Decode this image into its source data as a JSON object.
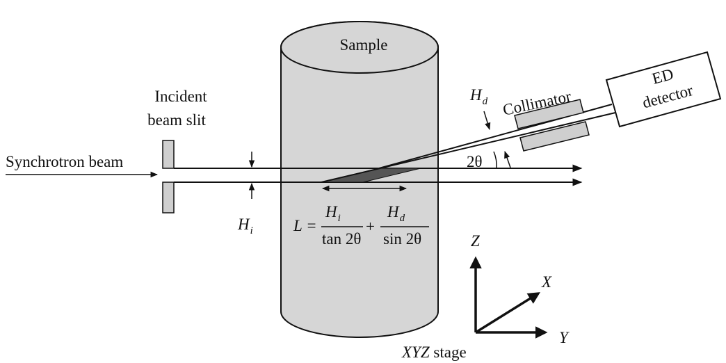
{
  "labels": {
    "sample": "Sample",
    "incident_line1": "Incident",
    "incident_line2": "beam slit",
    "synchrotron_beam": "Synchrotron beam",
    "collimator": "Collimator",
    "detector_line1": "ED",
    "detector_line2": "detector",
    "two_theta": "2θ",
    "stage_axes": "XYZ",
    "stage_word": " stage"
  },
  "symbols": {
    "H": "H",
    "sub_i": "i",
    "sub_d": "d"
  },
  "formula": {
    "lhs": "L =",
    "plus": "+",
    "den1": "tan 2θ",
    "den2": "sin 2θ"
  },
  "axes": {
    "z": "Z",
    "x": "X",
    "y": "Y"
  },
  "colors": {
    "cylinder_fill": "#d6d6d6",
    "slit_fill": "#cfcfcf",
    "gauge_fill": "#555555",
    "line": "#111111"
  }
}
